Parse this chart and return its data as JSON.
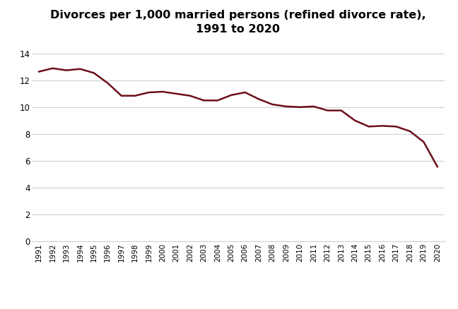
{
  "title_line1": "Divorces per 1,000 married persons (refined divorce rate),",
  "title_line2": "1991 to 2020",
  "years": [
    1991,
    1992,
    1993,
    1994,
    1995,
    1996,
    1997,
    1998,
    1999,
    2000,
    2001,
    2002,
    2003,
    2004,
    2005,
    2006,
    2007,
    2008,
    2009,
    2010,
    2011,
    2012,
    2013,
    2014,
    2015,
    2016,
    2017,
    2018,
    2019,
    2020
  ],
  "values": [
    12.65,
    12.9,
    12.75,
    12.85,
    12.55,
    11.8,
    10.85,
    10.85,
    11.1,
    11.15,
    11.0,
    10.85,
    10.5,
    10.5,
    10.9,
    11.1,
    10.6,
    10.2,
    10.05,
    10.0,
    10.05,
    9.75,
    9.75,
    9.0,
    8.55,
    8.6,
    8.55,
    8.2,
    7.4,
    5.55
  ],
  "line_color": "#6B0F1A",
  "line_width": 1.8,
  "ylim": [
    0,
    15
  ],
  "yticks": [
    0,
    2,
    4,
    6,
    8,
    10,
    12,
    14
  ],
  "background_color": "#ffffff",
  "title_fontsize": 11.5,
  "title_fontweight": "bold",
  "grid_color": "#d0d0d0",
  "tick_fontsize": 8.5,
  "xtick_fontsize": 7.5
}
